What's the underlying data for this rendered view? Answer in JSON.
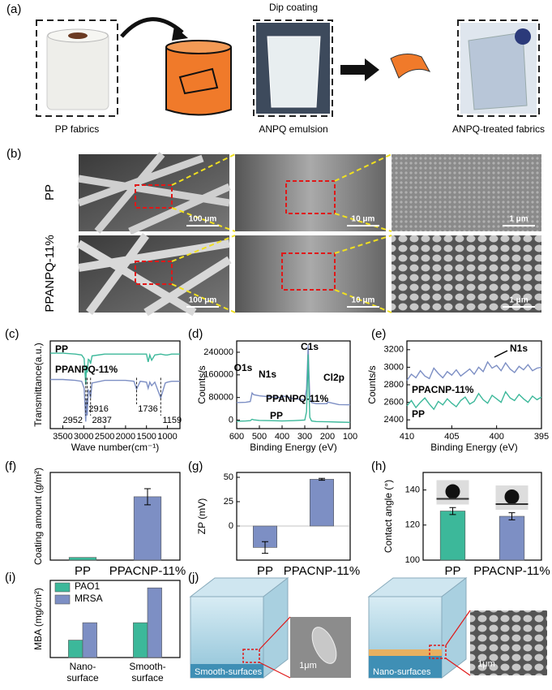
{
  "panel_labels": [
    "(a)",
    "(b)",
    "(c)",
    "(d)",
    "(e)",
    "(f)",
    "(g)",
    "(h)",
    "(i)",
    "(j)"
  ],
  "fabrication": {
    "step": "Dip coating",
    "labels": [
      "PP fabrics",
      "ANPQ emulsion",
      "ANPQ-treated fabrics"
    ]
  },
  "sem": {
    "rows": [
      "PP",
      "PPANPQ-11%"
    ],
    "scale_bars": [
      [
        "100 μm",
        "10 μm",
        "1 μm"
      ],
      [
        "100 μm",
        "10 μm",
        "1 μm"
      ]
    ]
  },
  "chart_data": [
    {
      "type": "line",
      "y_label": "Transmittance(a.u.)",
      "x_label": "Wave number(cm⁻¹)",
      "xlim": [
        3800,
        700
      ],
      "xticks": [
        3500,
        3000,
        2500,
        2000,
        1500,
        1000
      ],
      "ylim": [
        0,
        10
      ],
      "x": [
        3800,
        3500,
        3200,
        3050,
        2990,
        2952,
        2935,
        2916,
        2890,
        2860,
        2837,
        2800,
        2500,
        2000,
        1800,
        1736,
        1650,
        1500,
        1460,
        1420,
        1377,
        1300,
        1159,
        1050,
        1000,
        900,
        700
      ],
      "series": [
        {
          "name": "PP",
          "color": "#3cb89a",
          "values": [
            8.6,
            8.6,
            8.5,
            8.4,
            8.0,
            5.0,
            7.2,
            6.4,
            7.9,
            7.8,
            7.4,
            8.3,
            8.5,
            8.5,
            8.5,
            8.5,
            8.5,
            8.5,
            7.6,
            8.4,
            7.8,
            8.4,
            8.5,
            8.4,
            8.4,
            8.5,
            8.5
          ]
        },
        {
          "name": "PPANPQ-11%",
          "color": "#7d8fc4",
          "values": [
            5.6,
            5.6,
            5.5,
            5.4,
            4.6,
            0.8,
            3.4,
            1.5,
            4.4,
            4.2,
            3.5,
            5.2,
            5.5,
            5.5,
            5.4,
            4.5,
            5.4,
            5.3,
            4.6,
            5.3,
            4.9,
            5.3,
            3.5,
            5.2,
            5.3,
            5.4,
            5.4
          ]
        }
      ],
      "annotations": [
        2952,
        2916,
        2837,
        1736,
        1159
      ]
    },
    {
      "type": "line",
      "y_label": "Counts/s",
      "x_label": "Binding Energy (eV)",
      "xlim": [
        600,
        100
      ],
      "xticks": [
        600,
        500,
        400,
        300,
        200,
        100
      ],
      "ylim": [
        -30000,
        280000
      ],
      "yticks": [
        0,
        80000,
        160000,
        240000
      ],
      "x": [
        600,
        560,
        540,
        532,
        525,
        500,
        450,
        402,
        399,
        350,
        300,
        292,
        288,
        285,
        282,
        278,
        270,
        250,
        202,
        199,
        150,
        100
      ],
      "series": [
        {
          "name": "PPANPQ-11%",
          "color": "#7d8fc4",
          "values": [
            62000,
            63000,
            66000,
            96000,
            90000,
            86000,
            82000,
            79000,
            86000,
            76000,
            72000,
            110000,
            200000,
            265000,
            180000,
            80000,
            62000,
            58000,
            58000,
            64000,
            55000,
            54000
          ]
        },
        {
          "name": "PP",
          "color": "#3cb89a",
          "values": [
            -4000,
            -3000,
            -2000,
            3000,
            1000,
            -1000,
            -2000,
            -3000,
            -3000,
            -2000,
            0,
            30000,
            150000,
            232000,
            120000,
            10000,
            -3000,
            -5000,
            -6000,
            -6000,
            -7000,
            -8000
          ]
        }
      ],
      "annotations": [
        "O1s",
        "N1s",
        "C1s",
        "Cl2p"
      ]
    },
    {
      "type": "line",
      "y_label": "Counts/s",
      "x_label": "Binding Energy (eV)",
      "xlim": [
        410,
        395
      ],
      "xticks": [
        410,
        405,
        400,
        395
      ],
      "ylim": [
        2300,
        3300
      ],
      "yticks": [
        2400,
        2600,
        2800,
        3000,
        3200
      ],
      "x": [
        410,
        409.5,
        409,
        408.5,
        408,
        407.5,
        407,
        406.5,
        406,
        405.5,
        405,
        404.5,
        404,
        403.5,
        403,
        402.5,
        402,
        401.5,
        401,
        400.5,
        400,
        399.5,
        399,
        398.5,
        398,
        397.5,
        397,
        396.5,
        396,
        395.5,
        395
      ],
      "series": [
        {
          "name": "PPACNP-11%",
          "color": "#7d8fc4",
          "values": [
            2850,
            2920,
            2880,
            2960,
            2900,
            2870,
            2990,
            2930,
            2880,
            2950,
            2910,
            2970,
            2900,
            2940,
            2980,
            2920,
            3000,
            2950,
            3060,
            2990,
            3020,
            2960,
            3050,
            2980,
            2940,
            3010,
            2970,
            3030,
            2960,
            2990,
            3000
          ]
        },
        {
          "name": "PP",
          "color": "#3cb89a",
          "values": [
            2560,
            2620,
            2540,
            2600,
            2650,
            2580,
            2520,
            2610,
            2570,
            2640,
            2590,
            2550,
            2620,
            2660,
            2580,
            2610,
            2700,
            2630,
            2590,
            2680,
            2640,
            2600,
            2720,
            2650,
            2620,
            2690,
            2640,
            2600,
            2670,
            2630,
            2660
          ]
        }
      ],
      "annotations": [
        "N1s"
      ]
    },
    {
      "type": "bar",
      "y_label": "Coating amount (g/m²)",
      "categories": [
        "PP",
        "PPACNP-11%"
      ],
      "values": [
        0.02,
        0.47
      ],
      "errors": [
        0,
        0.06
      ],
      "colors": [
        "#3cb89a",
        "#7d8fc4"
      ],
      "ylim": [
        0,
        0.65
      ]
    },
    {
      "type": "bar",
      "y_label": "ZP (mV)",
      "categories": [
        "PP",
        "PPACNP-11%"
      ],
      "values": [
        -22,
        48
      ],
      "errors": [
        6,
        1
      ],
      "colors": [
        "#7d8fc4",
        "#7d8fc4"
      ],
      "ylim": [
        -35,
        55
      ],
      "yticks": [
        0,
        25,
        50
      ]
    },
    {
      "type": "bar",
      "y_label": "Contact angle (°)",
      "categories": [
        "PP",
        "PPACNP-11%"
      ],
      "values": [
        128,
        125
      ],
      "errors": [
        2,
        2
      ],
      "colors": [
        "#3cb89a",
        "#7d8fc4"
      ],
      "ylim": [
        100,
        150
      ],
      "yticks": [
        100,
        120,
        140
      ]
    },
    {
      "type": "grouped_bar",
      "y_label": "MBA (mg/cm²)",
      "categories": [
        "Nano-\nsurface",
        "Smooth-\nsurface"
      ],
      "series": [
        {
          "name": "PAO1",
          "color": "#3cb89a",
          "values": [
            0.35,
            0.7
          ]
        },
        {
          "name": "MRSA",
          "color": "#7d8fc4",
          "values": [
            0.7,
            1.4
          ]
        }
      ],
      "ylim": [
        0,
        1.55
      ],
      "legend": "upper left"
    }
  ],
  "illustration": {
    "scale_bars": [
      "1μm",
      "1μm"
    ],
    "labels": [
      "Smooth-surfaces",
      "Nano-surfaces"
    ]
  }
}
